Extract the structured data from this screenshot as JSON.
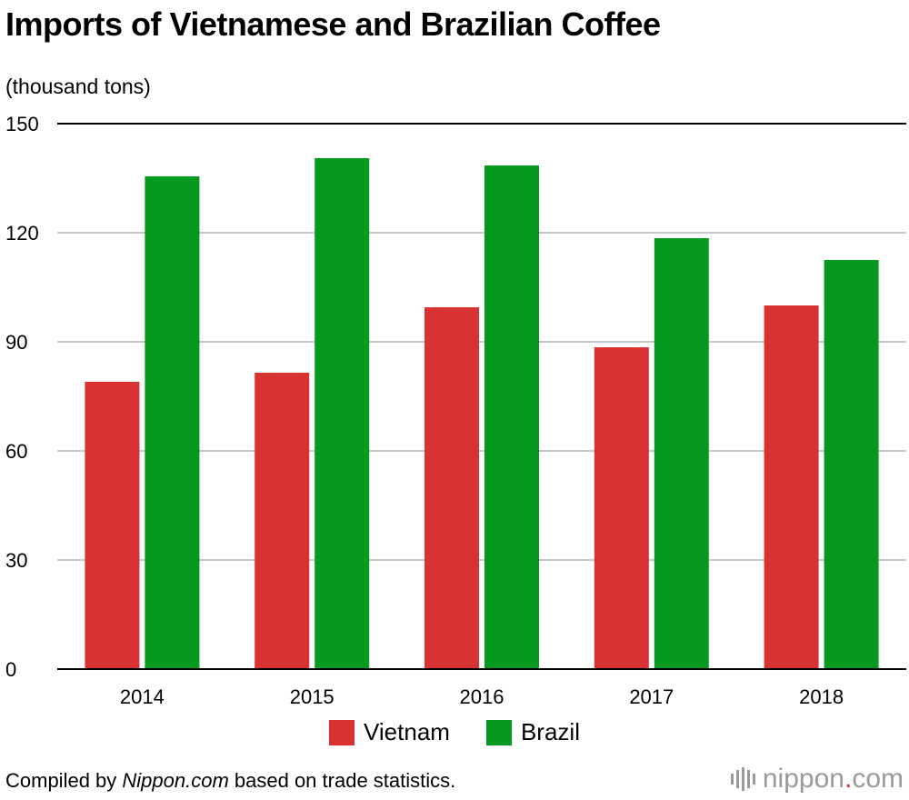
{
  "chart_data": {
    "type": "bar",
    "title": "Imports of Vietnamese and Brazilian Coffee",
    "ylabel": "(thousand tons)",
    "xlabel": "",
    "categories": [
      "2014",
      "2015",
      "2016",
      "2017",
      "2018"
    ],
    "series": [
      {
        "name": "Vietnam",
        "color": "#d93232",
        "values": [
          79,
          81.5,
          99.5,
          88.5,
          100
        ]
      },
      {
        "name": "Brazil",
        "color": "#059a1f",
        "values": [
          135.5,
          140.5,
          138.5,
          118.5,
          112.5
        ]
      }
    ],
    "ylim": [
      0,
      150
    ],
    "yticks": [
      "0",
      "30",
      "60",
      "90",
      "120",
      "150"
    ],
    "grid": true,
    "legend_position": "bottom"
  },
  "footer": {
    "prefix": "Compiled by ",
    "source": "Nippon.com",
    "suffix": " based on trade statistics."
  },
  "logo": {
    "name": "nippon",
    "dot": ".",
    "tld": "com"
  }
}
